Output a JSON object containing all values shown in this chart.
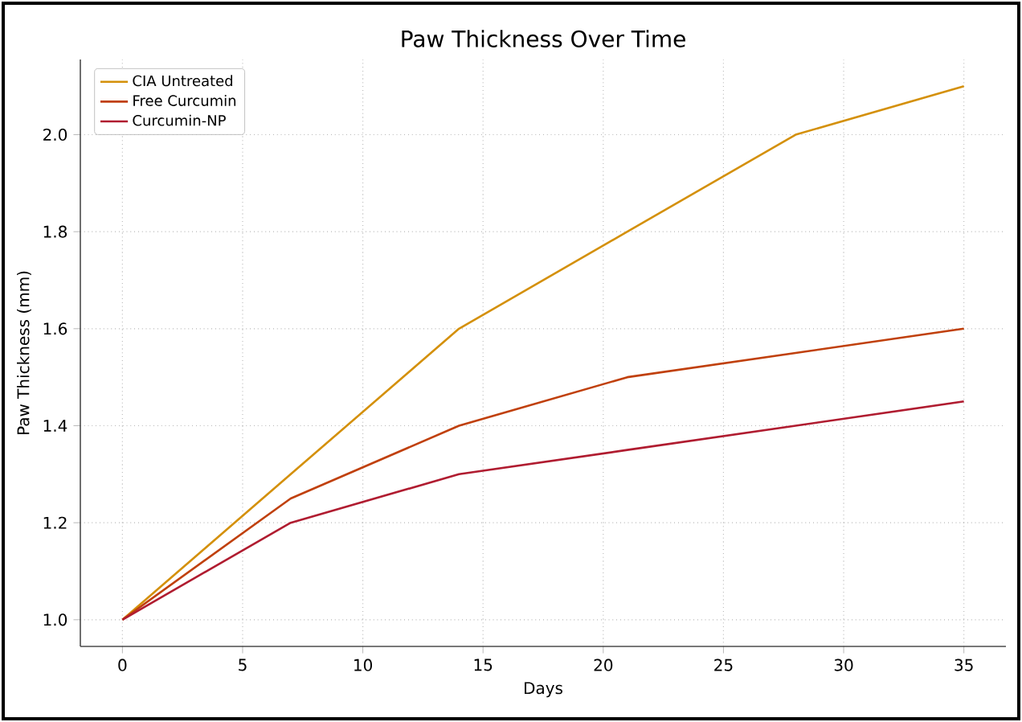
{
  "chart_data": {
    "type": "line",
    "title": "Paw Thickness Over Time",
    "xlabel": "Days",
    "ylabel": "Paw Thickness (mm)",
    "x": [
      0,
      7,
      14,
      21,
      28,
      35
    ],
    "series": [
      {
        "name": "CIA Untreated",
        "color": "#d4900a",
        "values": [
          1.0,
          1.3,
          1.6,
          1.8,
          2.0,
          2.1
        ]
      },
      {
        "name": "Free Curcumin",
        "color": "#c0400c",
        "values": [
          1.0,
          1.25,
          1.4,
          1.5,
          1.55,
          1.6
        ]
      },
      {
        "name": "Curcumin-NP",
        "color": "#b01c30",
        "values": [
          1.0,
          1.2,
          1.3,
          1.35,
          1.4,
          1.45
        ]
      }
    ],
    "xlim": [
      -1.75,
      36.75
    ],
    "xticks": [
      0,
      5,
      10,
      15,
      20,
      25,
      30,
      35
    ],
    "ylim": [
      0.945,
      2.155
    ],
    "yticks": [
      {
        "value": 1.0,
        "label": "1.0"
      },
      1.2,
      1.4,
      1.6,
      1.8,
      {
        "value": 2.0,
        "label": "2.0"
      }
    ],
    "grid": true,
    "legend": "top left",
    "marker": "none",
    "line_style": "solid"
  }
}
